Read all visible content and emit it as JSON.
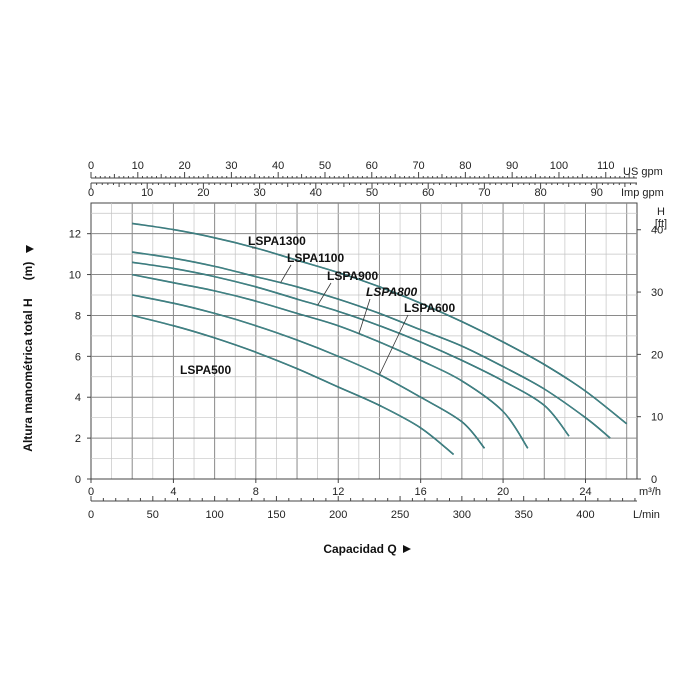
{
  "chart_data": {
    "type": "line",
    "title": "",
    "ylabel": "Altura manométrica total H",
    "ylabel_unit": "(m)",
    "xlabel": "Capacidad Q",
    "x_unit": "m³/h",
    "ylim": [
      0,
      13.5
    ],
    "xlim": [
      0,
      26.5
    ],
    "grid": true,
    "y_ticks": [
      0,
      2,
      4,
      6,
      8,
      10,
      12
    ],
    "x_ticks": [
      0,
      4,
      8,
      12,
      16,
      20,
      24
    ],
    "secondary_axes": {
      "lmin": {
        "unit": "L/min",
        "ticks": [
          0,
          50,
          100,
          150,
          200,
          250,
          300,
          350,
          400
        ]
      },
      "us_gpm": {
        "unit": "US gpm",
        "ticks": [
          0,
          10,
          20,
          30,
          40,
          50,
          60,
          70,
          80,
          90,
          100,
          110
        ]
      },
      "imp_gpm": {
        "unit": "Imp gpm",
        "ticks": [
          0,
          10,
          20,
          30,
          40,
          50,
          60,
          70,
          80,
          90
        ]
      },
      "ft": {
        "unit": "H",
        "unit2": "[ft]",
        "ticks": [
          0,
          10,
          20,
          30,
          40
        ]
      }
    },
    "series": [
      {
        "name": "LSPA1300",
        "x": [
          2,
          4,
          6,
          8,
          10,
          12,
          14,
          16,
          18,
          20,
          22,
          24,
          26
        ],
        "y": [
          12.5,
          12.2,
          11.8,
          11.3,
          10.7,
          10.1,
          9.4,
          8.6,
          7.7,
          6.7,
          5.6,
          4.3,
          2.7
        ]
      },
      {
        "name": "LSPA1100",
        "x": [
          2,
          4,
          6,
          8,
          10,
          12,
          14,
          16,
          18,
          20,
          22,
          24,
          25.2
        ],
        "y": [
          11.1,
          10.8,
          10.4,
          9.9,
          9.4,
          8.8,
          8.1,
          7.3,
          6.5,
          5.5,
          4.4,
          3.0,
          2.0
        ]
      },
      {
        "name": "LSPA900",
        "x": [
          2,
          4,
          6,
          8,
          10,
          12,
          14,
          16,
          18,
          20,
          22,
          23.2
        ],
        "y": [
          10.6,
          10.3,
          9.9,
          9.4,
          8.8,
          8.2,
          7.5,
          6.7,
          5.8,
          4.8,
          3.6,
          2.1
        ]
      },
      {
        "name": "LSPA800",
        "x": [
          2,
          4,
          6,
          8,
          10,
          12,
          14,
          16,
          18,
          20,
          21.2
        ],
        "y": [
          10.0,
          9.6,
          9.2,
          8.7,
          8.1,
          7.5,
          6.7,
          5.8,
          4.8,
          3.3,
          1.5
        ]
      },
      {
        "name": "LSPA600",
        "x": [
          2,
          4,
          6,
          8,
          10,
          12,
          14,
          16,
          18,
          19.1
        ],
        "y": [
          9.0,
          8.6,
          8.1,
          7.5,
          6.8,
          6.0,
          5.1,
          4.0,
          2.8,
          1.5
        ]
      },
      {
        "name": "LSPA500",
        "x": [
          2,
          4,
          6,
          8,
          10,
          12,
          14,
          16,
          17.6
        ],
        "y": [
          8.0,
          7.5,
          6.9,
          6.2,
          5.4,
          4.5,
          3.6,
          2.5,
          1.2
        ]
      }
    ]
  }
}
